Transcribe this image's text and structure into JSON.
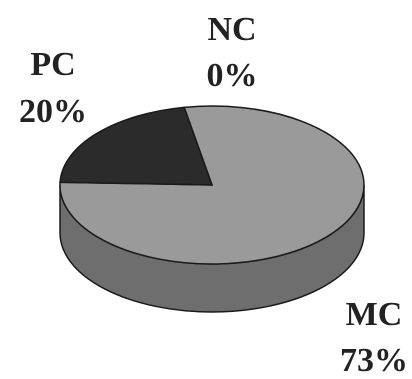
{
  "chart_data": {
    "type": "pie",
    "three_d": true,
    "slices": [
      {
        "label": "MC",
        "value_text": "73%",
        "value": 73,
        "color": "#9a9a9a"
      },
      {
        "label": "PC",
        "value_text": "20%",
        "value": 20,
        "color": "#2b2b2b"
      },
      {
        "label": "NC",
        "value_text": "0%",
        "value": 0,
        "color": "#9a9a9a"
      }
    ],
    "side_color": "#6e6e6e",
    "edge_color": "#1a1a1a",
    "legend": "none"
  }
}
